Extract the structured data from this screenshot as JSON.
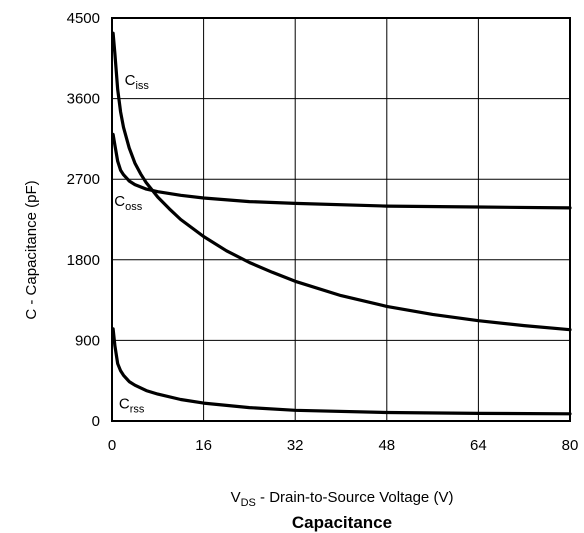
{
  "chart_data": {
    "type": "line",
    "title": "Capacitance",
    "xlabel": {
      "main": "V",
      "sub": "DS",
      "rest": " - Drain-to-Source Voltage (V)"
    },
    "ylabel": "C - Capacitance (pF)",
    "xlim": [
      0,
      80
    ],
    "ylim": [
      0,
      4500
    ],
    "xticks": [
      0,
      16,
      32,
      48,
      64,
      80
    ],
    "yticks": [
      0,
      900,
      1800,
      2700,
      3600,
      4500
    ],
    "grid": true,
    "legend": "inline labels",
    "series": [
      {
        "name": "Ciss",
        "label_main": "C",
        "label_sub": "iss",
        "color": "#000000",
        "x": [
          0.2,
          0.5,
          1,
          1.5,
          2,
          3,
          4,
          5,
          6,
          8,
          10,
          12,
          16,
          20,
          24,
          28,
          32,
          40,
          48,
          56,
          64,
          72,
          80
        ],
        "y": [
          4330,
          4100,
          3700,
          3450,
          3280,
          3050,
          2880,
          2760,
          2660,
          2500,
          2370,
          2250,
          2060,
          1900,
          1770,
          1660,
          1560,
          1400,
          1280,
          1190,
          1120,
          1065,
          1020
        ]
      },
      {
        "name": "Coss",
        "label_main": "C",
        "label_sub": "oss",
        "color": "#000000",
        "x": [
          0.2,
          0.5,
          1,
          1.5,
          2,
          3,
          4,
          6,
          8,
          12,
          16,
          24,
          32,
          48,
          64,
          80
        ],
        "y": [
          3200,
          3080,
          2900,
          2800,
          2750,
          2680,
          2640,
          2590,
          2560,
          2520,
          2490,
          2450,
          2430,
          2400,
          2390,
          2380
        ]
      },
      {
        "name": "Crss",
        "label_main": "C",
        "label_sub": "rss",
        "color": "#000000",
        "x": [
          0.2,
          0.5,
          1,
          1.5,
          2,
          3,
          4,
          6,
          8,
          12,
          16,
          24,
          32,
          48,
          64,
          80
        ],
        "y": [
          1030,
          840,
          640,
          560,
          510,
          440,
          400,
          340,
          300,
          240,
          200,
          150,
          120,
          95,
          85,
          80
        ]
      }
    ]
  }
}
